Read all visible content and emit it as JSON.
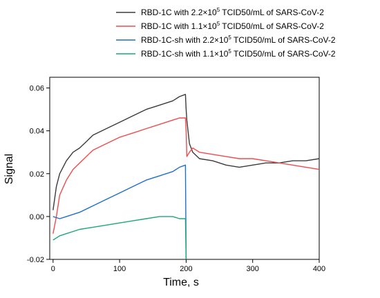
{
  "chart_data": {
    "type": "line",
    "xlabel": "Time, s",
    "ylabel": "Signal",
    "xlim": [
      -5,
      400
    ],
    "ylim": [
      -0.02,
      0.065
    ],
    "xticks": [
      "0",
      "100",
      "200",
      "300",
      "400"
    ],
    "yticks": [
      "-0.02",
      "0.00",
      "0.02",
      "0.04",
      "0.06"
    ],
    "grid": false,
    "legend_position": "top-right",
    "series": [
      {
        "name": "RBD-1C with 2.2×10⁵ TCID50/mL of SARS-CoV-2",
        "label_parts": {
          "pre": "RBD-1C with 2.2×10",
          "sup": "5",
          "post": " TCID50/mL of SARS-CoV-2"
        },
        "color": "#3a3a3a",
        "x": [
          0,
          5,
          10,
          20,
          30,
          40,
          50,
          60,
          80,
          100,
          120,
          140,
          160,
          180,
          190,
          199,
          200,
          201,
          205,
          210,
          220,
          240,
          260,
          280,
          300,
          320,
          340,
          360,
          380,
          400
        ],
        "y": [
          0.003,
          0.014,
          0.02,
          0.026,
          0.03,
          0.032,
          0.035,
          0.038,
          0.041,
          0.044,
          0.047,
          0.05,
          0.052,
          0.054,
          0.056,
          0.057,
          0.05,
          0.045,
          0.034,
          0.03,
          0.027,
          0.026,
          0.024,
          0.023,
          0.024,
          0.025,
          0.025,
          0.026,
          0.026,
          0.027
        ]
      },
      {
        "name": "RBD-1C with 1.1×10⁵ TCID50/mL of SARS-CoV-2",
        "label_parts": {
          "pre": "RBD-1C with 1.1×10",
          "sup": "5",
          "post": " TCID50/mL of SARS-CoV-2"
        },
        "color": "#f24a4a",
        "x": [
          0,
          5,
          10,
          20,
          30,
          40,
          50,
          60,
          80,
          100,
          120,
          140,
          160,
          180,
          190,
          199,
          200,
          201,
          205,
          210,
          220,
          240,
          260,
          280,
          300,
          320,
          340,
          360,
          380,
          400
        ],
        "y": [
          -0.008,
          0.0,
          0.01,
          0.017,
          0.022,
          0.025,
          0.028,
          0.031,
          0.034,
          0.037,
          0.039,
          0.041,
          0.043,
          0.045,
          0.046,
          0.046,
          0.04,
          0.028,
          0.03,
          0.032,
          0.03,
          0.029,
          0.028,
          0.027,
          0.027,
          0.026,
          0.025,
          0.024,
          0.023,
          0.022
        ]
      },
      {
        "name": "RBD-1C-sh with 2.2×10⁵ TCID50/mL of SARS-CoV-2",
        "label_parts": {
          "pre": "RBD-1C-sh with 2.2×10",
          "sup": "5",
          "post": " TCID50/mL of SARS-CoV-2"
        },
        "color": "#1c6fc9",
        "x": [
          0,
          10,
          20,
          40,
          60,
          80,
          100,
          120,
          140,
          160,
          180,
          190,
          199,
          200
        ],
        "y": [
          0.0,
          -0.001,
          0.0,
          0.002,
          0.005,
          0.008,
          0.011,
          0.014,
          0.017,
          0.019,
          0.021,
          0.023,
          0.024,
          -0.02
        ]
      },
      {
        "name": "RBD-1C-sh with 1.1×10⁵ TCID50/mL of SARS-CoV-2",
        "label_parts": {
          "pre": "RBD-1C-sh with 1.1×10",
          "sup": "5",
          "post": " TCID50/mL of SARS-CoV-2"
        },
        "color": "#1aa87a",
        "x": [
          0,
          10,
          20,
          40,
          60,
          80,
          100,
          120,
          140,
          160,
          180,
          190,
          199,
          200
        ],
        "y": [
          -0.011,
          -0.009,
          -0.008,
          -0.006,
          -0.005,
          -0.004,
          -0.003,
          -0.002,
          -0.001,
          0.0,
          0.0,
          -0.001,
          -0.001,
          -0.02
        ]
      }
    ]
  }
}
